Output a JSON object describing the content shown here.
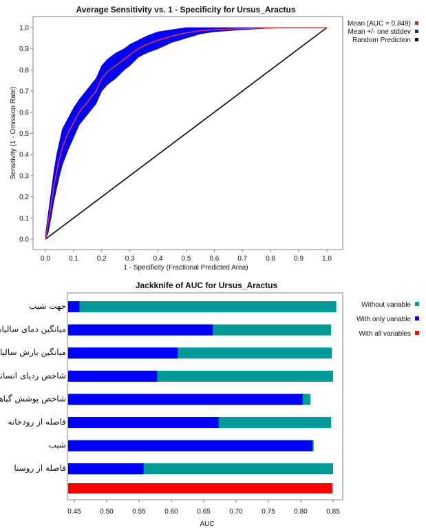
{
  "chart_data": [
    {
      "type": "line",
      "title": "Average Sensitivity vs. 1 - Specificity for Ursus_Aractus",
      "xlabel": "1 - Specificity (Fractional Predicted Area)",
      "ylabel": "Sensitivity (1 - Omission Rate)",
      "xlim": [
        0,
        1
      ],
      "ylim": [
        0,
        1
      ],
      "x_ticks": [
        "0.0",
        "0.1",
        "0.2",
        "0.3",
        "0.4",
        "0.5",
        "0.6",
        "0.7",
        "0.8",
        "0.9",
        "1.0"
      ],
      "y_ticks": [
        "0.0",
        "0.1",
        "0.2",
        "0.3",
        "0.4",
        "0.5",
        "0.6",
        "0.7",
        "0.8",
        "0.9",
        "1.0"
      ],
      "grid": false,
      "legend_position": "right",
      "series": [
        {
          "name": "Mean (AUC = 0.849)",
          "color": "#ff3333",
          "x": [
            0,
            0.01,
            0.02,
            0.03,
            0.04,
            0.05,
            0.06,
            0.08,
            0.1,
            0.12,
            0.15,
            0.18,
            0.2,
            0.22,
            0.25,
            0.28,
            0.3,
            0.33,
            0.36,
            0.4,
            0.45,
            0.5,
            0.55,
            0.6,
            0.7,
            0.85,
            1.0
          ],
          "y": [
            0,
            0.08,
            0.16,
            0.25,
            0.32,
            0.38,
            0.43,
            0.5,
            0.55,
            0.6,
            0.65,
            0.7,
            0.76,
            0.79,
            0.82,
            0.85,
            0.87,
            0.9,
            0.92,
            0.94,
            0.96,
            0.975,
            0.985,
            0.99,
            0.995,
            1.0,
            1.0
          ]
        },
        {
          "name": "Mean +/- one stddev",
          "color": "#0000ff",
          "x": [
            0,
            0.01,
            0.02,
            0.03,
            0.04,
            0.05,
            0.06,
            0.08,
            0.1,
            0.12,
            0.15,
            0.18,
            0.2,
            0.22,
            0.25,
            0.28,
            0.3,
            0.33,
            0.36,
            0.4,
            0.45,
            0.5,
            0.55,
            0.6,
            0.7,
            0.85,
            1.0
          ],
          "upper": [
            0.02,
            0.12,
            0.22,
            0.32,
            0.4,
            0.46,
            0.52,
            0.57,
            0.62,
            0.66,
            0.71,
            0.76,
            0.82,
            0.85,
            0.88,
            0.9,
            0.92,
            0.94,
            0.96,
            0.98,
            0.99,
            1.0,
            1.0,
            1.0,
            1.0,
            1.0,
            1.0
          ],
          "lower": [
            0,
            0.03,
            0.1,
            0.18,
            0.24,
            0.3,
            0.35,
            0.42,
            0.48,
            0.54,
            0.59,
            0.64,
            0.7,
            0.73,
            0.76,
            0.8,
            0.82,
            0.86,
            0.88,
            0.9,
            0.93,
            0.95,
            0.97,
            0.98,
            0.99,
            1.0,
            1.0
          ]
        },
        {
          "name": "Random Prediction",
          "color": "#000000",
          "x": [
            0,
            1
          ],
          "y": [
            0,
            1
          ]
        }
      ]
    },
    {
      "type": "bar",
      "title": "Jackknife of AUC for Ursus_Aractus",
      "xlabel": "AUC",
      "xlim": [
        0.44,
        0.865
      ],
      "x_ticks": [
        "0.45",
        "0.50",
        "0.55",
        "0.60",
        "0.65",
        "0.70",
        "0.75",
        "0.80",
        "0.85"
      ],
      "legend_position": "right",
      "legend": [
        {
          "name": "Without variable",
          "color": "#009999"
        },
        {
          "name": "With only variable",
          "color": "#0000ff"
        },
        {
          "name": "With all variables",
          "color": "#ff0000"
        }
      ],
      "categories": [
        "جهت شیب",
        "میانگین دمای سالیانه",
        "میانگین بارش سالیانه",
        "شاخص ردپای انسانی",
        "شاخص پوشش گیاهی",
        "فاصله از رودخانه",
        "شیب",
        "فاصله از روستا"
      ],
      "without_variable": [
        0.855,
        0.847,
        0.848,
        0.85,
        0.815,
        0.847,
        0.82,
        0.85
      ],
      "with_only_variable": [
        0.458,
        0.664,
        0.61,
        0.578,
        0.803,
        0.673,
        0.818,
        0.557
      ],
      "with_all_variables": 0.849
    }
  ]
}
